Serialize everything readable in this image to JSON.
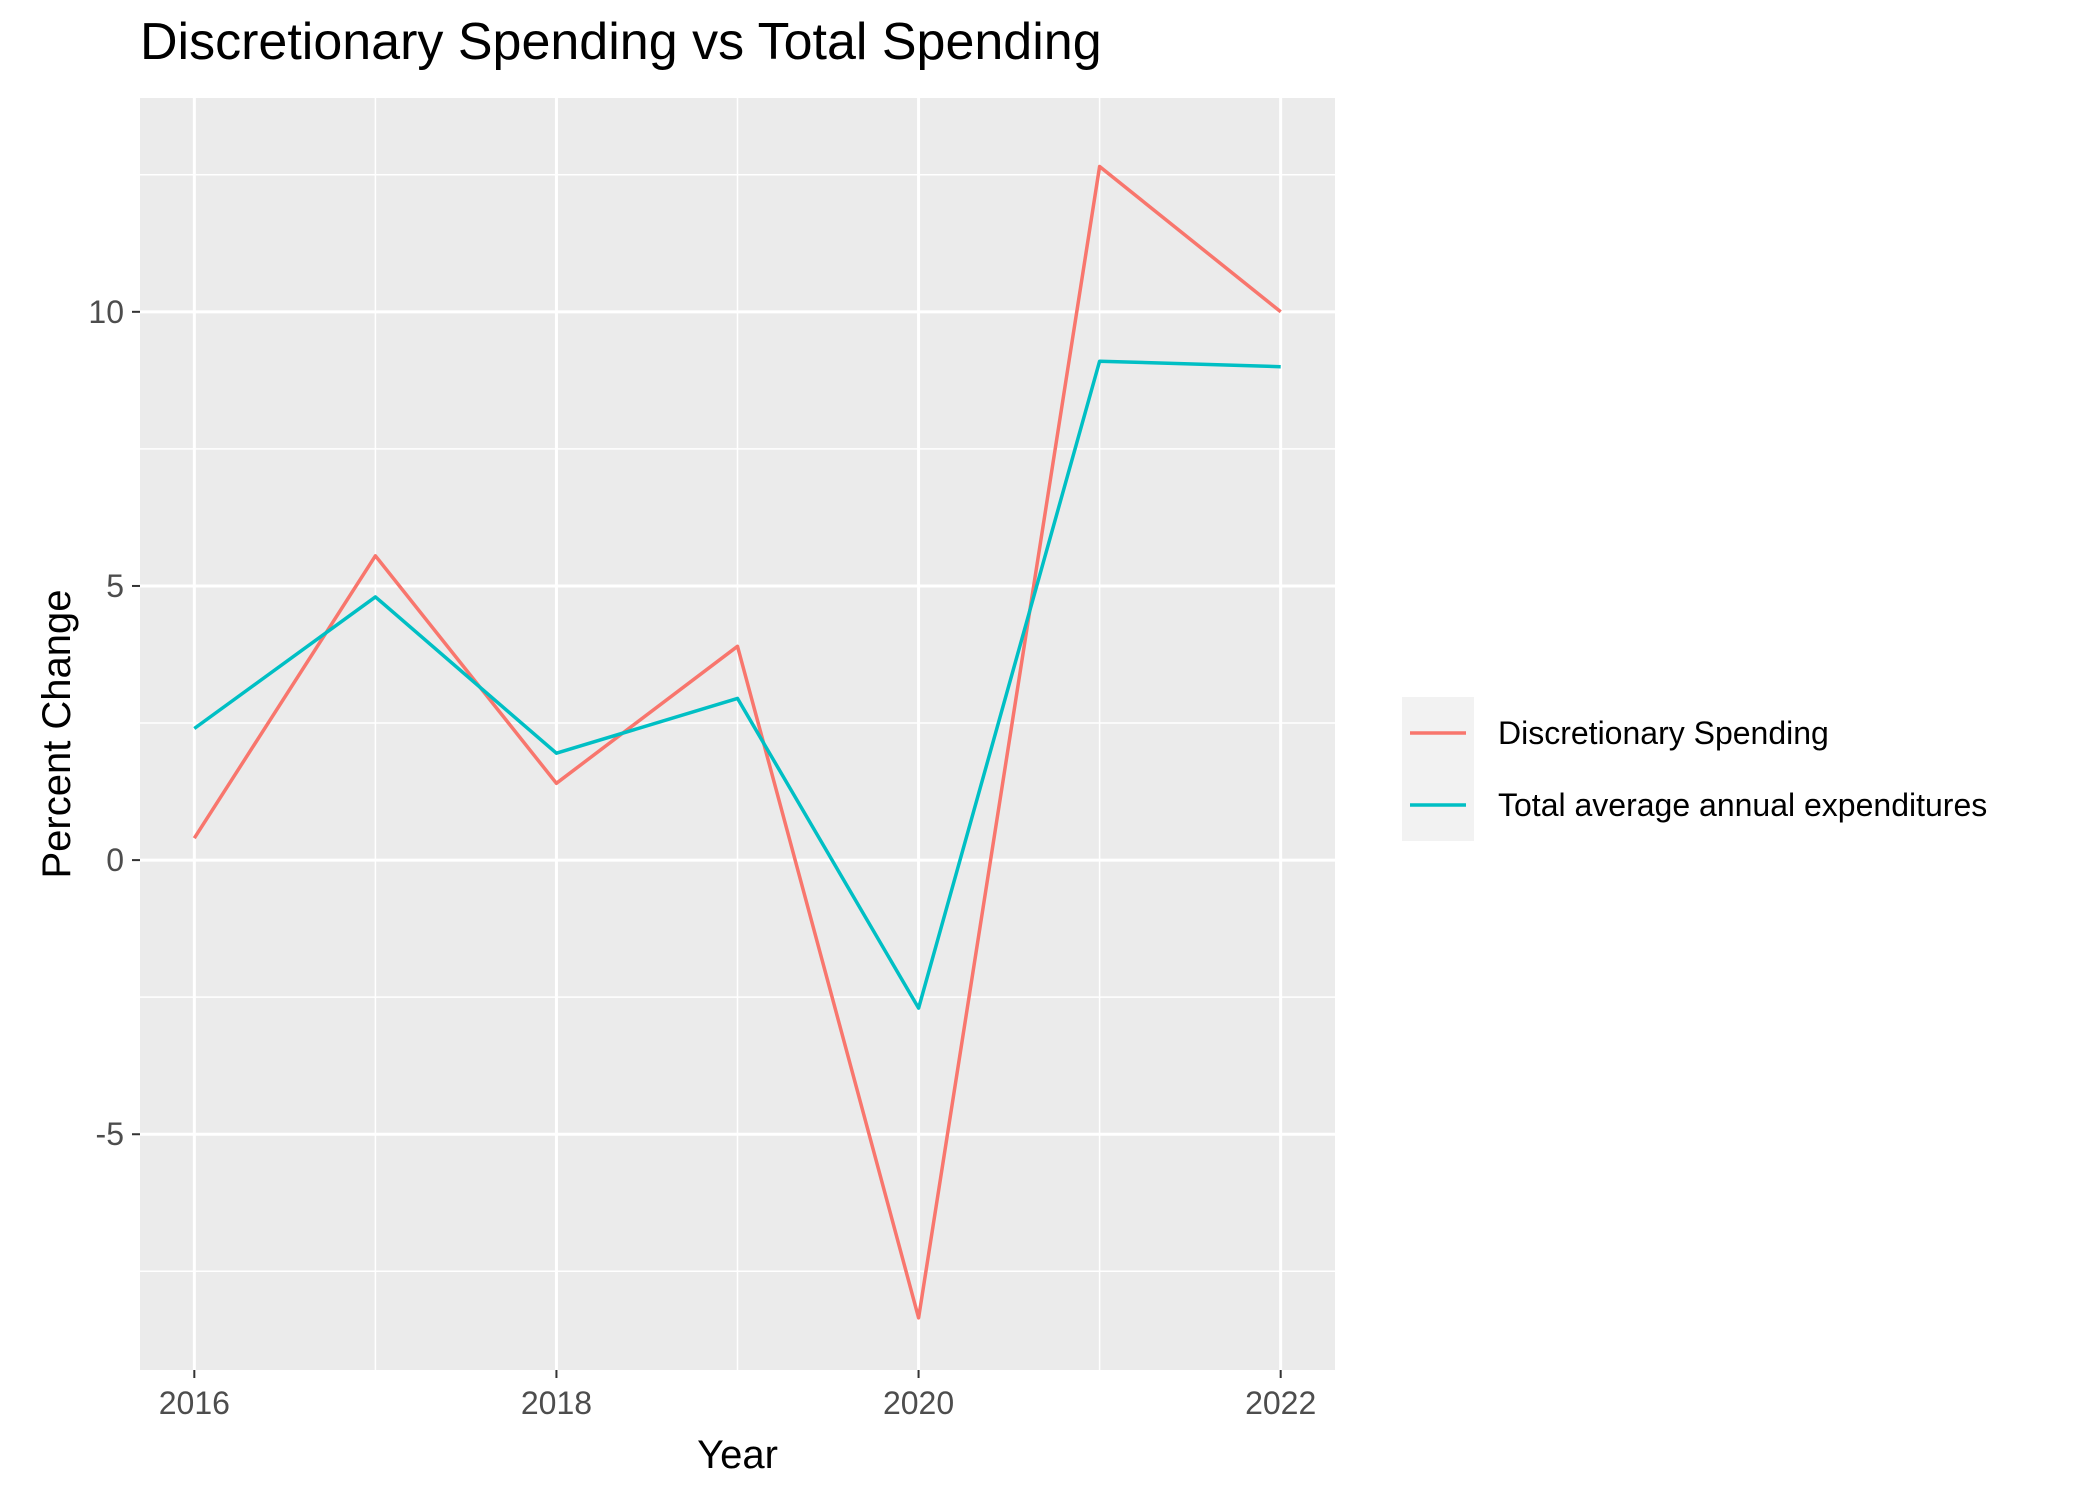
{
  "chart_data": {
    "type": "line",
    "title": "Discretionary Spending vs Total Spending",
    "xlabel": "Year",
    "ylabel": "Percent Change",
    "x": [
      2016,
      2017,
      2018,
      2019,
      2020,
      2021,
      2022
    ],
    "x_ticks": [
      2016,
      2018,
      2020,
      2022
    ],
    "xlim": [
      2015.7,
      2022.3
    ],
    "y_ticks": [
      -5,
      0,
      5,
      10
    ],
    "y_minor_ticks": [
      -7.5,
      -2.5,
      2.5,
      7.5,
      12.5
    ],
    "ylim": [
      -9.3,
      13.9
    ],
    "grid": true,
    "legend_position": "right",
    "series": [
      {
        "name": "Discretionary Spending",
        "color": "#F8766D",
        "values": [
          0.4,
          5.55,
          1.4,
          3.9,
          -8.35,
          12.65,
          10.0
        ]
      },
      {
        "name": "Total average annual expenditures",
        "color": "#00BFC4",
        "values": [
          2.4,
          4.8,
          1.95,
          2.95,
          -2.7,
          9.1,
          9.0
        ]
      }
    ]
  }
}
